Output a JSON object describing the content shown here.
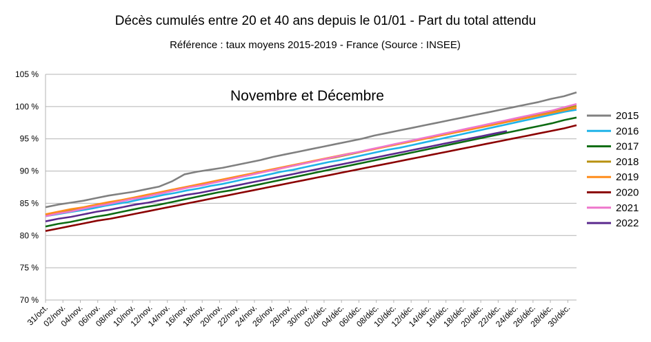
{
  "chart_data": {
    "type": "line",
    "title": "Décès cumulés entre 20 et 40 ans depuis le 01/01 - Part du total attendu",
    "subtitle": "Référence : taux moyens 2015-2019 - France  (Source : INSEE)",
    "annotation": "Novembre et Décembre",
    "xlabel": "",
    "ylabel": "",
    "ylim": [
      70,
      105
    ],
    "y_ticks": [
      "70 %",
      "75 %",
      "80 %",
      "85 %",
      "90 %",
      "95 %",
      "100 %",
      "105 %"
    ],
    "x_ticks": [
      "31/oct.",
      "02/nov.",
      "04/nov.",
      "06/nov.",
      "08/nov.",
      "10/nov.",
      "12/nov.",
      "14/nov.",
      "16/nov.",
      "18/nov.",
      "20/nov.",
      "22/nov.",
      "24/nov.",
      "26/nov.",
      "28/nov.",
      "30/nov.",
      "02/déc.",
      "04/déc.",
      "06/déc.",
      "08/déc.",
      "10/déc.",
      "12/déc.",
      "14/déc.",
      "16/déc.",
      "18/déc.",
      "20/déc.",
      "22/déc.",
      "24/déc.",
      "26/déc.",
      "28/déc.",
      "30/déc."
    ],
    "grid": true,
    "legend_position": "right",
    "series": [
      {
        "name": "2015",
        "color": "#808080",
        "values": [
          84.4,
          84.8,
          85.1,
          85.4,
          85.8,
          86.2,
          86.5,
          86.8,
          87.2,
          87.6,
          88.4,
          89.5,
          89.9,
          90.2,
          90.5,
          90.9,
          91.3,
          91.7,
          92.2,
          92.6,
          93.0,
          93.4,
          93.8,
          94.2,
          94.6,
          95.0,
          95.5,
          95.9,
          96.3,
          96.7,
          97.1,
          97.5,
          97.9,
          98.3,
          98.7,
          99.1,
          99.5,
          99.9,
          100.3,
          100.7,
          101.2,
          101.6,
          102.2
        ],
        "end_day": 61
      },
      {
        "name": "2016",
        "color": "#1fb3e8",
        "values": [
          83.0,
          83.3,
          83.6,
          83.9,
          84.2,
          84.6,
          84.9,
          85.2,
          85.6,
          85.9,
          86.3,
          86.6,
          87.0,
          87.3,
          87.7,
          88.0,
          88.4,
          88.8,
          89.1,
          89.5,
          89.9,
          90.2,
          90.6,
          91.0,
          91.4,
          91.7,
          92.1,
          92.5,
          92.9,
          93.3,
          93.6,
          94.0,
          94.4,
          94.8,
          95.2,
          95.6,
          96.0,
          96.4,
          96.8,
          97.2,
          97.6,
          98.0,
          98.4,
          98.8,
          99.2,
          99.5
        ],
        "end_day": 61
      },
      {
        "name": "2017",
        "color": "#0d6b12",
        "values": [
          81.4,
          81.8,
          82.1,
          82.5,
          82.9,
          83.2,
          83.6,
          84.0,
          84.4,
          84.7,
          85.1,
          85.5,
          85.9,
          86.3,
          86.7,
          87.0,
          87.4,
          87.8,
          88.2,
          88.6,
          89.0,
          89.4,
          89.8,
          90.2,
          90.6,
          91.0,
          91.4,
          91.8,
          92.2,
          92.6,
          93.0,
          93.4,
          93.8,
          94.2,
          94.6,
          95.0,
          95.4,
          95.8,
          96.2,
          96.6,
          97.0,
          97.4,
          97.9,
          98.3
        ],
        "end_day": 61
      },
      {
        "name": "2018",
        "color": "#b8900f",
        "values": [
          83.2,
          83.6,
          83.9,
          84.3,
          84.6,
          85.0,
          85.4,
          85.7,
          86.1,
          86.5,
          86.9,
          87.2,
          87.6,
          88.0,
          88.4,
          88.7,
          89.1,
          89.5,
          89.9,
          90.2,
          90.6,
          91.0,
          91.4,
          91.8,
          92.1,
          92.5,
          92.9,
          93.3,
          93.7,
          94.1,
          94.5,
          94.9,
          95.3,
          95.7,
          96.1,
          96.5,
          96.9,
          97.3,
          97.7,
          98.1,
          98.5,
          98.9,
          99.3,
          99.7,
          100.1
        ],
        "end_day": 61
      },
      {
        "name": "2019",
        "color": "#ff8c1a",
        "values": [
          83.3,
          83.7,
          84.1,
          84.4,
          84.8,
          85.2,
          85.5,
          85.9,
          86.3,
          86.7,
          87.1,
          87.5,
          87.9,
          88.3,
          88.7,
          89.1,
          89.5,
          89.9,
          90.3,
          90.7,
          91.1,
          91.5,
          91.9,
          92.3,
          92.7,
          93.0,
          93.4,
          93.8,
          94.2,
          94.6,
          95.0,
          95.4,
          95.8,
          96.2,
          96.6,
          97.0,
          97.4,
          97.8,
          98.2,
          98.6,
          99.0,
          99.4,
          99.8
        ],
        "end_day": 61
      },
      {
        "name": "2020",
        "color": "#8b0000",
        "values": [
          80.7,
          81.1,
          81.5,
          81.9,
          82.3,
          82.6,
          83.0,
          83.4,
          83.8,
          84.2,
          84.6,
          85.0,
          85.4,
          85.8,
          86.2,
          86.6,
          87.0,
          87.4,
          87.8,
          88.2,
          88.6,
          89.0,
          89.4,
          89.8,
          90.2,
          90.6,
          91.0,
          91.4,
          91.8,
          92.2,
          92.6,
          93.0,
          93.4,
          93.8,
          94.2,
          94.6,
          95.0,
          95.4,
          95.8,
          96.2,
          96.6,
          97.1
        ],
        "end_day": 61
      },
      {
        "name": "2021",
        "color": "#ee77cc",
        "values": [
          83.0,
          83.4,
          83.7,
          84.1,
          84.5,
          84.8,
          85.2,
          85.6,
          85.9,
          86.3,
          86.7,
          87.1,
          87.5,
          87.8,
          88.2,
          88.6,
          89.0,
          89.4,
          89.8,
          90.2,
          90.6,
          91.0,
          91.4,
          91.8,
          92.2,
          92.6,
          93.0,
          93.4,
          93.8,
          94.2,
          94.6,
          95.0,
          95.4,
          95.8,
          96.2,
          96.6,
          97.0,
          97.4,
          97.8,
          98.2,
          98.6,
          99.0,
          99.4,
          99.9,
          100.4
        ],
        "end_day": 61
      },
      {
        "name": "2022",
        "color": "#5b2a8e",
        "values": [
          82.2,
          82.6,
          82.9,
          83.3,
          83.7,
          84.0,
          84.4,
          84.8,
          85.1,
          85.5,
          85.9,
          86.3,
          86.6,
          87.0,
          87.4,
          87.8,
          88.2,
          88.6,
          89.0,
          89.4,
          89.8,
          90.2,
          90.6,
          91.0,
          91.4,
          91.8,
          92.2,
          92.6,
          93.0,
          93.4,
          93.8,
          94.2,
          94.6,
          95.0,
          95.4,
          95.8,
          96.2
        ],
        "end_day": 53
      }
    ]
  }
}
